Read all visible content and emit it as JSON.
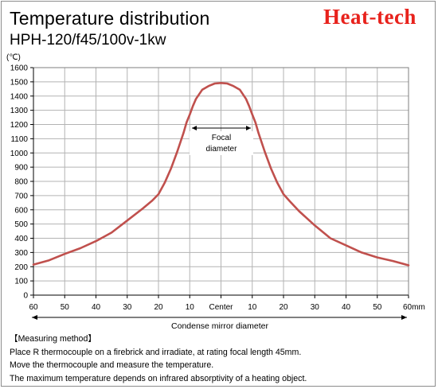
{
  "brand": "Heat-tech",
  "header": {
    "title": "Temperature distribution",
    "subtitle": "HPH-120/f45/100v-1kw"
  },
  "chart_data": {
    "type": "line",
    "title": "Temperature distribution",
    "ylabel": "(℃)",
    "ylim": [
      0,
      1600
    ],
    "y_ticks": [
      0,
      100,
      200,
      300,
      400,
      500,
      600,
      700,
      800,
      900,
      1000,
      1100,
      1200,
      1300,
      1400,
      1500,
      1600
    ],
    "xlim": [
      -60,
      60
    ],
    "x_ticks": [
      -60,
      -50,
      -40,
      -30,
      -20,
      -10,
      0,
      10,
      20,
      30,
      40,
      50,
      60
    ],
    "x_tick_labels": [
      "60",
      "50",
      "40",
      "30",
      "20",
      "10",
      "Center",
      "10",
      "20",
      "30",
      "40",
      "50",
      "60mm"
    ],
    "grid": true,
    "series": [
      {
        "color": "#c0504d",
        "x": [
          -60,
          -55,
          -50,
          -45,
          -40,
          -35,
          -30,
          -25,
          -22,
          -20,
          -18,
          -16,
          -14,
          -12,
          -11,
          -10,
          -9,
          -8,
          -6,
          -4,
          -2,
          0,
          2,
          4,
          6,
          8,
          9,
          10,
          11,
          12,
          14,
          16,
          18,
          20,
          22,
          25,
          30,
          35,
          40,
          45,
          50,
          55,
          60
        ],
        "y": [
          215,
          245,
          290,
          330,
          380,
          440,
          525,
          610,
          665,
          710,
          790,
          890,
          1010,
          1140,
          1215,
          1270,
          1330,
          1380,
          1445,
          1470,
          1488,
          1492,
          1488,
          1470,
          1445,
          1380,
          1330,
          1270,
          1215,
          1140,
          1010,
          890,
          790,
          710,
          660,
          590,
          490,
          400,
          350,
          300,
          265,
          240,
          210
        ]
      }
    ],
    "annotations": {
      "focal_line1": "Focal",
      "focal_line2": "diameter",
      "condense": "Condense mirror diameter"
    }
  },
  "notes": {
    "heading": "【Measuring method】",
    "lines": [
      "Place R thermocouple on a firebrick and irradiate, at rating focal length 45mm.",
      "Move the thermocouple and measure the temperature.",
      "The maximum temperature depends on infrared absorptivity of a heating object."
    ]
  }
}
